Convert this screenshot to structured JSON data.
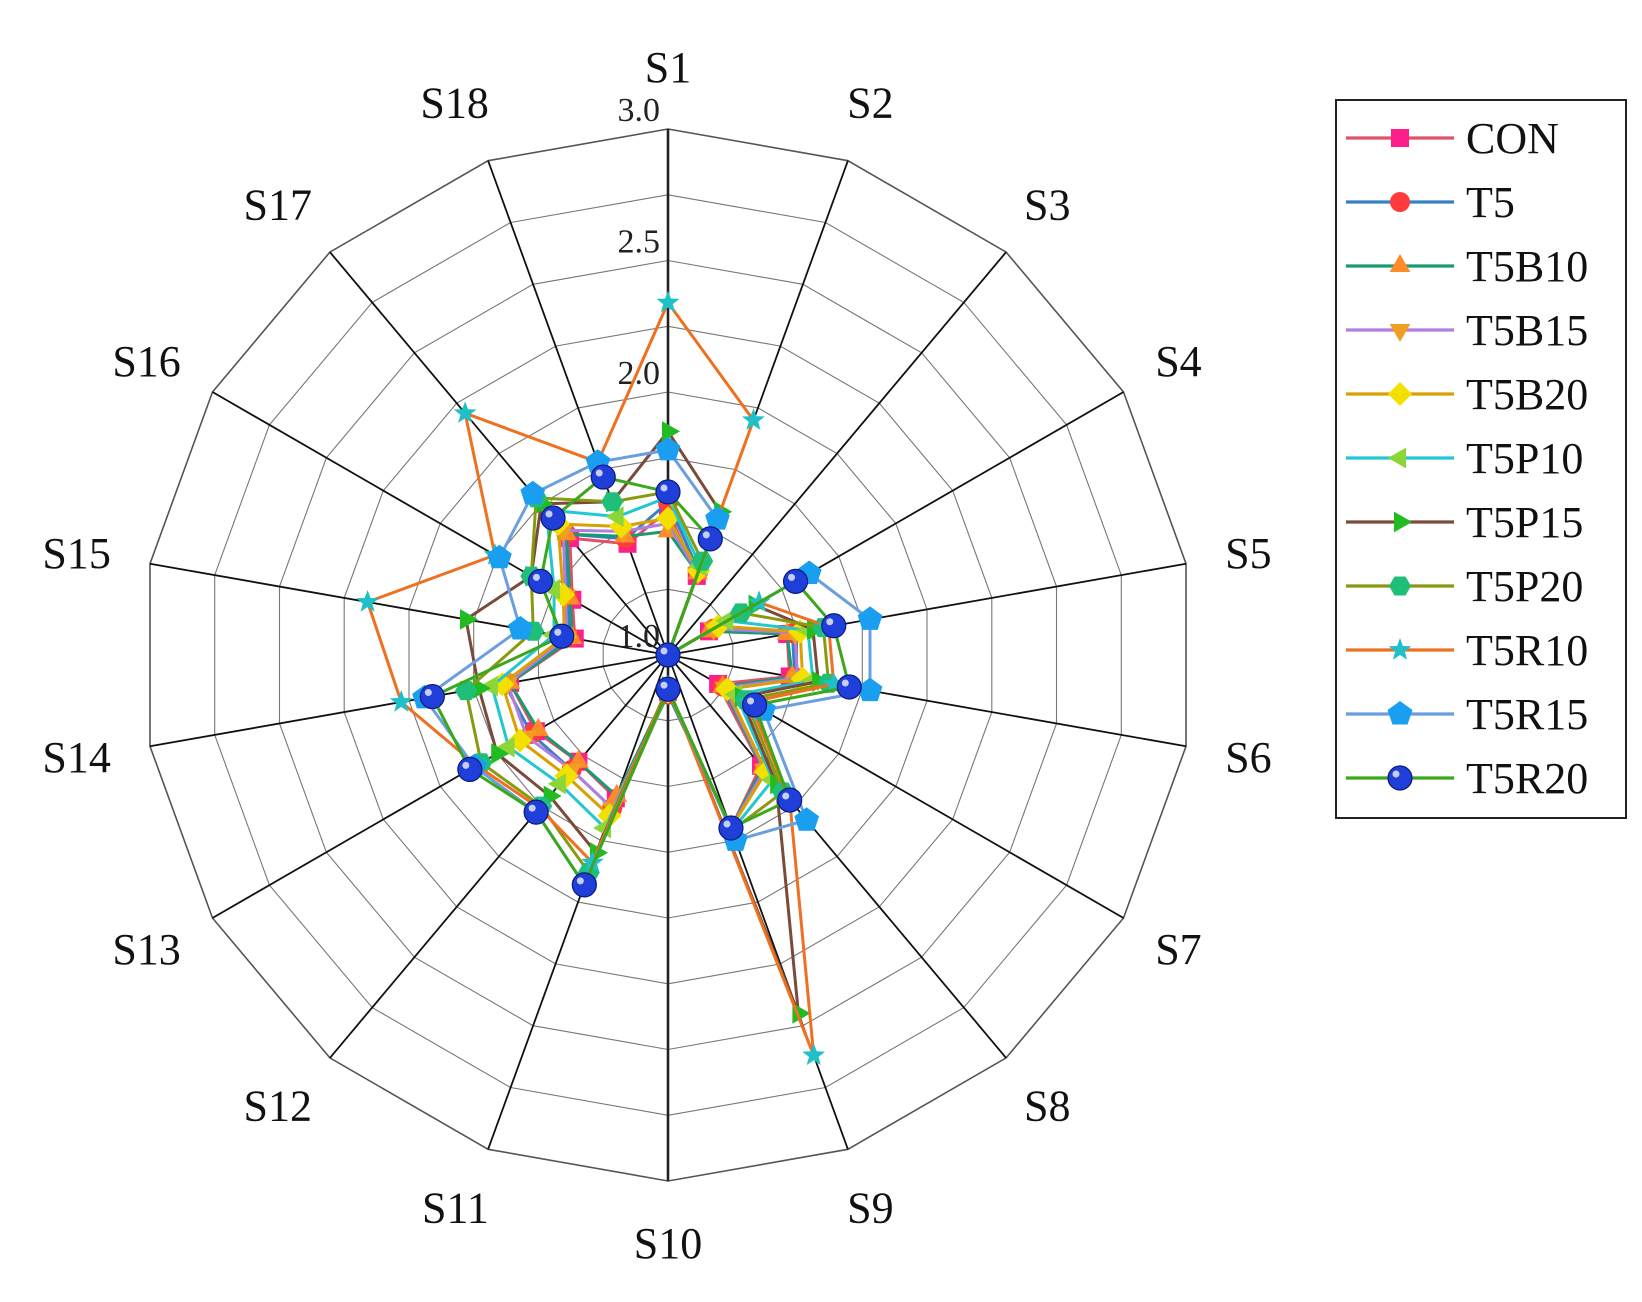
{
  "chart_data": {
    "type": "radar",
    "axes": [
      "S1",
      "S2",
      "S3",
      "S4",
      "S5",
      "S6",
      "S7",
      "S8",
      "S9",
      "S10",
      "S11",
      "S12",
      "S13",
      "S14",
      "S15",
      "S16",
      "S17",
      "S18"
    ],
    "range": [
      1.0,
      3.0
    ],
    "ticks": [
      "1.0",
      "1.5",
      "2.0",
      "2.5",
      "3.0"
    ],
    "tick_values": [
      1.0,
      1.5,
      2.0,
      2.5,
      3.0
    ],
    "shown_ticks": [
      "1.0",
      "2.0",
      "2.5",
      "3.0"
    ],
    "grid": true,
    "legend_position": "right",
    "series": [
      {
        "name": "CON",
        "color": "#e0506a",
        "marker": "square",
        "marker_color": "#ff1f8a",
        "values": [
          1.55,
          1.32,
          1.0,
          1.18,
          1.46,
          1.47,
          1.22,
          1.55,
          1.7,
          1.14,
          1.58,
          1.53,
          1.58,
          1.61,
          1.36,
          1.42,
          1.58,
          1.45
        ]
      },
      {
        "name": "T5",
        "color": "#3a7fc0",
        "marker": "circle",
        "marker_color": "#ff3b3b",
        "values": [
          1.58,
          1.34,
          1.0,
          1.2,
          1.48,
          1.49,
          1.24,
          1.57,
          1.7,
          1.15,
          1.62,
          1.57,
          1.6,
          1.63,
          1.38,
          1.44,
          1.6,
          1.47
        ]
      },
      {
        "name": "T5B10",
        "color": "#1a9a73",
        "marker": "triangle-up",
        "marker_color": "#ff8a2a",
        "values": [
          1.47,
          1.33,
          1.0,
          1.18,
          1.46,
          1.48,
          1.24,
          1.56,
          1.7,
          1.13,
          1.57,
          1.53,
          1.57,
          1.61,
          1.37,
          1.43,
          1.6,
          1.48
        ]
      },
      {
        "name": "T5B15",
        "color": "#b07de0",
        "marker": "triangle-down",
        "marker_color": "#f0a020",
        "values": [
          1.5,
          1.33,
          1.0,
          1.2,
          1.49,
          1.5,
          1.25,
          1.57,
          1.7,
          1.14,
          1.62,
          1.57,
          1.62,
          1.62,
          1.39,
          1.45,
          1.62,
          1.5
        ]
      },
      {
        "name": "T5B20",
        "color": "#d8a000",
        "marker": "diamond",
        "marker_color": "#f2e000",
        "values": [
          1.52,
          1.34,
          1.0,
          1.22,
          1.51,
          1.52,
          1.26,
          1.58,
          1.7,
          1.14,
          1.65,
          1.6,
          1.65,
          1.64,
          1.4,
          1.46,
          1.65,
          1.52
        ]
      },
      {
        "name": "T5P10",
        "color": "#22c8d0",
        "marker": "triangle-left",
        "marker_color": "#8cd63a",
        "values": [
          1.6,
          1.36,
          1.0,
          1.26,
          1.54,
          1.56,
          1.3,
          1.62,
          1.71,
          1.14,
          1.7,
          1.64,
          1.7,
          1.68,
          1.44,
          1.5,
          1.72,
          1.56
        ]
      },
      {
        "name": "T5P15",
        "color": "#7a4a3a",
        "marker": "triangle-right",
        "marker_color": "#22bb22",
        "values": [
          1.85,
          1.58,
          1.0,
          1.38,
          1.56,
          1.58,
          1.32,
          1.64,
          2.45,
          1.12,
          1.8,
          1.7,
          1.75,
          1.73,
          1.78,
          1.6,
          1.75,
          1.62
        ]
      },
      {
        "name": "T5P20",
        "color": "#8a9a10",
        "marker": "hexagon",
        "marker_color": "#1fbf7a",
        "values": [
          1.62,
          1.38,
          1.0,
          1.32,
          1.6,
          1.62,
          1.34,
          1.68,
          1.71,
          1.14,
          1.88,
          1.75,
          1.82,
          1.78,
          1.52,
          1.6,
          1.78,
          1.62
        ]
      },
      {
        "name": "T5R10",
        "color": "#ee7020",
        "marker": "star",
        "marker_color": "#1fc0c8",
        "values": [
          2.34,
          1.95,
          1.0,
          1.4,
          1.62,
          1.64,
          1.36,
          1.72,
          2.62,
          1.12,
          1.84,
          1.76,
          1.84,
          2.03,
          2.16,
          1.76,
          2.2,
          1.78
        ]
      },
      {
        "name": "T5R15",
        "color": "#6b9ee0",
        "marker": "pentagon",
        "marker_color": "#1a9ef0",
        "values": [
          1.78,
          1.55,
          1.0,
          1.62,
          1.78,
          1.78,
          1.42,
          1.82,
          1.75,
          1.13,
          1.93,
          1.78,
          1.85,
          1.94,
          1.57,
          1.74,
          1.8,
          1.78
        ]
      },
      {
        "name": "T5R20",
        "color": "#3aa81a",
        "marker": "sphere",
        "marker_color": "#1f3fd8",
        "values": [
          1.62,
          1.47,
          1.0,
          1.56,
          1.64,
          1.7,
          1.38,
          1.72,
          1.7,
          1.13,
          1.93,
          1.78,
          1.87,
          1.91,
          1.41,
          1.56,
          1.68,
          1.72
        ]
      }
    ]
  }
}
